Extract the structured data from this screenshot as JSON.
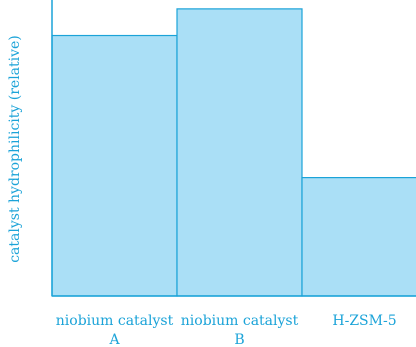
{
  "chart_data": {
    "type": "bar",
    "ylabel": "catalyst hydrophilicity (relative)",
    "categories": [
      [
        "niobium catalyst",
        "A"
      ],
      [
        "niobium catalyst",
        "B"
      ],
      [
        "H-ZSM-5"
      ]
    ],
    "values": [
      0.88,
      0.97,
      0.4
    ],
    "ylim": [
      0,
      1
    ],
    "grid": false,
    "legend": "none",
    "bar_fill": "#aadff6",
    "bar_stroke": "#1ba3d8",
    "axis_color": "#1ba3d8",
    "text_color": "#1ba3d8"
  }
}
